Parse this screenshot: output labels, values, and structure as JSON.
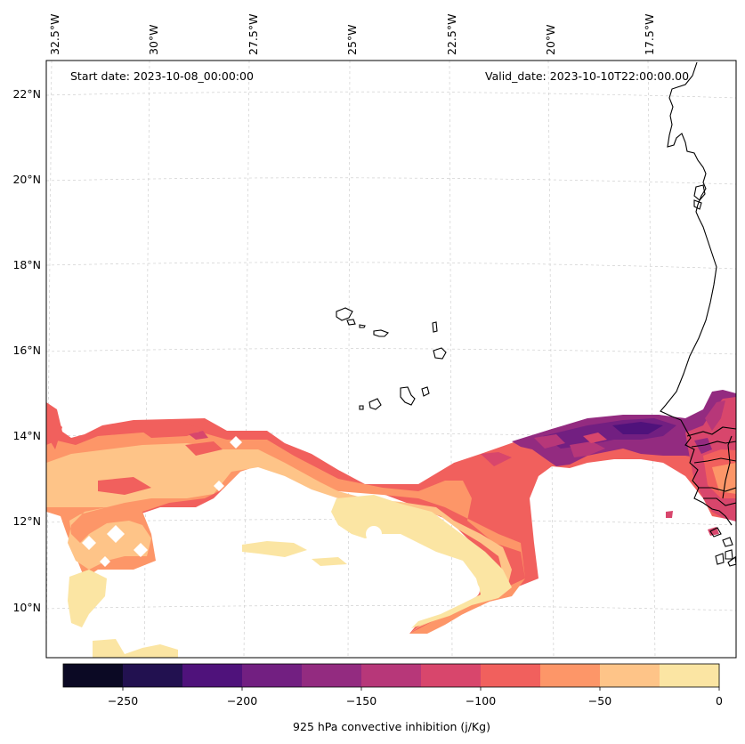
{
  "header": {
    "start_date": "Start date: 2023-10-08_00:00:00",
    "valid_date": "Valid_date: 2023-10-10T22:00:00.00"
  },
  "longitude_labels": [
    "32.5°W",
    "30°W",
    "27.5°W",
    "25°W",
    "22.5°W",
    "20°W",
    "17.5°W"
  ],
  "latitude_labels": [
    "22°N",
    "20°N",
    "18°N",
    "16°N",
    "14°N",
    "12°N",
    "10°N"
  ],
  "colorbar": {
    "label": "925 hPa convective inhibition (j/Kg)",
    "ticks": [
      "−250",
      "−200",
      "−150",
      "−100",
      "−50",
      "0"
    ],
    "range": [
      -275,
      0
    ],
    "colors": [
      "#0b0924",
      "#221150",
      "#4f127b",
      "#721f81",
      "#932b80",
      "#b73779",
      "#d8466c",
      "#f1605d",
      "#fd9668",
      "#fec488",
      "#fbe5a3"
    ]
  },
  "chart_data": {
    "type": "filled-contour map",
    "title": "",
    "variable": "925 hPa convective inhibition (j/Kg)",
    "levels": [
      -275,
      -250,
      -225,
      -200,
      -175,
      -150,
      -125,
      -100,
      -75,
      -50,
      -25,
      0
    ],
    "colormap": "magma",
    "extent_lon": [
      -32.6,
      -15.5
    ],
    "extent_lat": [
      8.9,
      22.8
    ],
    "gridlines": true
  }
}
